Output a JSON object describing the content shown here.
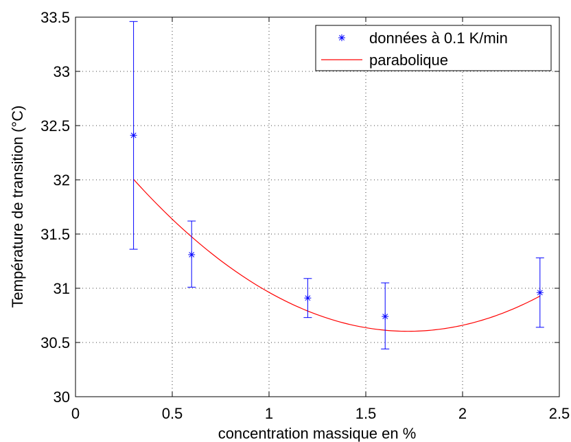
{
  "chart_data": {
    "type": "scatter",
    "title": "",
    "xlabel": "concentration massique en %",
    "ylabel": "Température de transition (°C)",
    "xlim": [
      0,
      2.5
    ],
    "ylim": [
      30,
      33.5
    ],
    "x_ticks": [
      "0",
      "0.5",
      "1",
      "1.5",
      "2",
      "2.5"
    ],
    "y_ticks": [
      "30",
      "30.5",
      "31",
      "31.5",
      "32",
      "32.5",
      "33",
      "33.5"
    ],
    "grid": true,
    "grid_style": "dotted",
    "legend_position": "top-right",
    "series": [
      {
        "name": "données à 0.1 K/min",
        "type": "scatter-errorbar",
        "marker": "asterisk",
        "color": "#0000ff",
        "x": [
          0.3,
          0.6,
          1.2,
          1.6,
          2.4
        ],
        "y": [
          32.41,
          31.31,
          30.91,
          30.74,
          30.96
        ],
        "y_low": [
          31.36,
          31.01,
          30.73,
          30.44,
          30.64
        ],
        "y_high": [
          33.46,
          31.62,
          31.09,
          31.05,
          31.28
        ]
      },
      {
        "name": "parabolique",
        "type": "line",
        "color": "#ff0000",
        "fit": "quadratic",
        "x_range": [
          0.3,
          2.4
        ],
        "coefficients": [
          0.6972,
          -2.3952,
          32.6604
        ]
      }
    ]
  }
}
